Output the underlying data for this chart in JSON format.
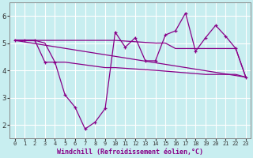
{
  "background_color": "#c8eef0",
  "line_color": "#880088",
  "grid_color": "#b8dfe0",
  "xlabel": "Windchill (Refroidissement éolien,°C)",
  "xlim": [
    -0.5,
    23.5
  ],
  "ylim": [
    1.5,
    6.5
  ],
  "yticks": [
    2,
    3,
    4,
    5,
    6
  ],
  "xticks": [
    0,
    1,
    2,
    3,
    4,
    5,
    6,
    7,
    8,
    9,
    10,
    11,
    12,
    13,
    14,
    15,
    16,
    17,
    18,
    19,
    20,
    21,
    22,
    23
  ],
  "series": [
    {
      "x": [
        0,
        2
      ],
      "y": [
        5.1,
        5.1
      ]
    },
    {
      "x": [
        0,
        23
      ],
      "y": [
        5.1,
        3.75
      ]
    },
    {
      "x": [
        0,
        1,
        2,
        3,
        4,
        5,
        9,
        10,
        14,
        15,
        16,
        17,
        18,
        19,
        20,
        21,
        22,
        23
      ],
      "y": [
        5.1,
        5.1,
        5.1,
        5.1,
        5.1,
        5.1,
        5.1,
        5.1,
        5.0,
        5.0,
        4.8,
        4.8,
        4.8,
        4.8,
        4.8,
        4.8,
        4.8,
        3.75
      ]
    },
    {
      "x": [
        0,
        1,
        2,
        3,
        4,
        5,
        9,
        10,
        14,
        19,
        20,
        21,
        22,
        23
      ],
      "y": [
        5.1,
        5.1,
        5.1,
        5.0,
        4.3,
        4.3,
        4.1,
        4.1,
        4.0,
        3.85,
        3.85,
        3.85,
        3.85,
        3.75
      ]
    },
    {
      "x": [
        0,
        1,
        2,
        3,
        4,
        5,
        6,
        7,
        8,
        9,
        10,
        11,
        12,
        13,
        14,
        15,
        16,
        17,
        18,
        19,
        20,
        21,
        22,
        23
      ],
      "y": [
        5.1,
        5.1,
        5.1,
        4.3,
        4.3,
        3.1,
        2.65,
        1.85,
        2.1,
        2.6,
        5.4,
        4.85,
        5.2,
        4.35,
        4.35,
        5.3,
        5.45,
        6.1,
        4.7,
        5.2,
        5.65,
        5.25,
        4.8,
        3.75
      ]
    }
  ]
}
